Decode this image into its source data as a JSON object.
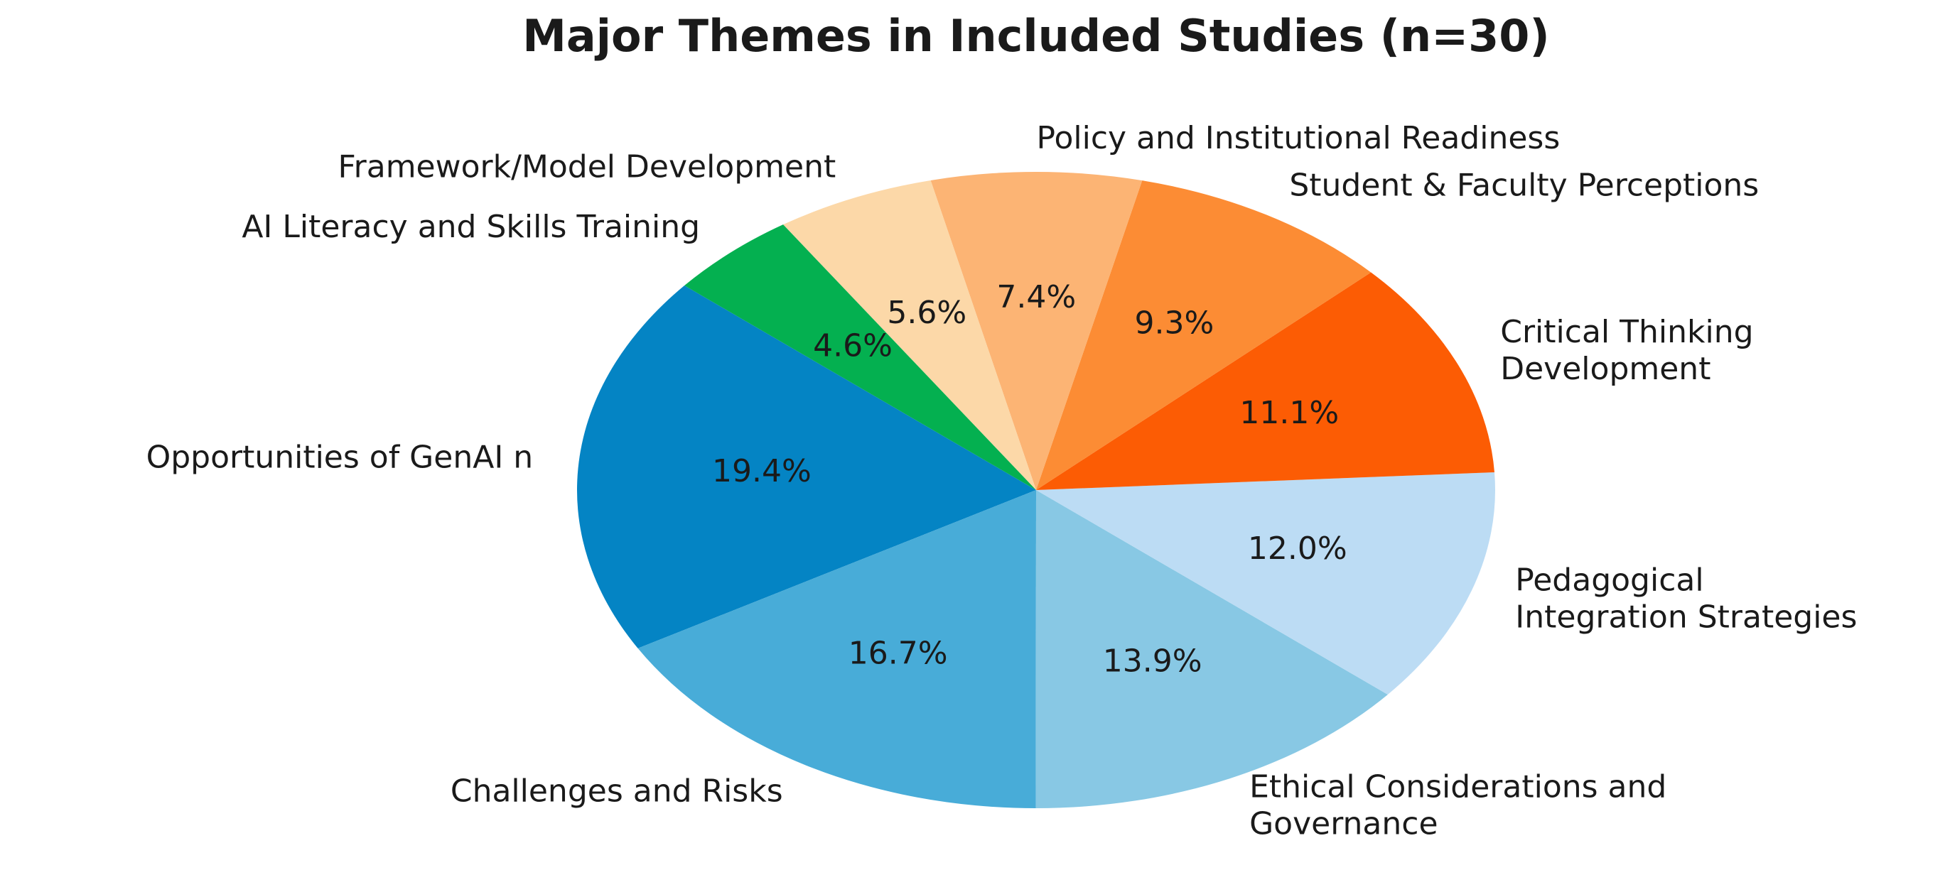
{
  "chart_data": {
    "type": "pie",
    "title": "Major Themes in Included Studies (n=30)",
    "categories": [
      "Opportunities of GenAI n",
      "Challenges and Risks",
      "Ethical Considerations and\nGovernance",
      "Pedagogical\nIntegration Strategies",
      "Critical Thinking\nDevelopment",
      "Student & Faculty Perceptions",
      "Policy and Institutional Readiness",
      "Framework/Model Development",
      "AI Literacy and Skills Training"
    ],
    "values": [
      19.4,
      16.7,
      13.9,
      12.0,
      11.1,
      9.3,
      7.4,
      5.6,
      4.6
    ],
    "value_labels": [
      "19.4%",
      "16.7%",
      "13.9%",
      "12.0%",
      "11.1%",
      "9.3%",
      "7.4%",
      "5.6%",
      "4.6%"
    ],
    "colors": [
      "#0484c4",
      "#48acd8",
      "#88c8e4",
      "#bcdcf4",
      "#fc5c04",
      "#fc8c34",
      "#fcb474",
      "#fcd8a8",
      "#04b050"
    ]
  }
}
